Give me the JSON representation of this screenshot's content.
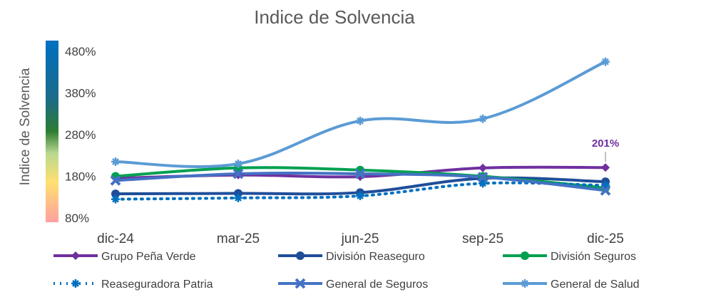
{
  "chart_data": {
    "type": "line",
    "title": "Indice de Solvencia",
    "ylabel": "Indice de Solvencia",
    "xlabel": "",
    "categories": [
      "dic-24",
      "mar-25",
      "jun-25",
      "sep-25",
      "dic-25"
    ],
    "ylim": [
      80,
      480
    ],
    "yticks": [
      80,
      180,
      280,
      380,
      480
    ],
    "ytick_labels": [
      "80%",
      "180%",
      "280%",
      "380%",
      "480%"
    ],
    "series": [
      {
        "name": "Grupo Peña Verde",
        "values": [
          175,
          183,
          179,
          200,
          201
        ],
        "color": "#7030A0",
        "marker": "diamond",
        "dash": "solid"
      },
      {
        "name": "División Reaseguro",
        "values": [
          138,
          139,
          141,
          175,
          167
        ],
        "color": "#1F4E99",
        "marker": "circle",
        "dash": "solid"
      },
      {
        "name": "División Seguros",
        "values": [
          180,
          200,
          195,
          180,
          152
        ],
        "color": "#00A050",
        "marker": "circle",
        "dash": "solid"
      },
      {
        "name": "Reaseguradora Patria",
        "values": [
          125,
          128,
          133,
          163,
          158
        ],
        "color": "#0070C0",
        "marker": "star",
        "dash": "dotted"
      },
      {
        "name": "General de Seguros",
        "values": [
          170,
          186,
          186,
          178,
          146
        ],
        "color": "#4472C4",
        "marker": "cross",
        "dash": "solid"
      },
      {
        "name": "General de Salud",
        "values": [
          215,
          210,
          313,
          318,
          455
        ],
        "color": "#5B9BD5",
        "marker": "star",
        "dash": "solid"
      }
    ],
    "data_labels": [
      {
        "series": "Grupo Peña Verde",
        "category": "dic-25",
        "text": "201%",
        "color": "#7030A0"
      }
    ],
    "legend_position": "bottom",
    "color_bar": [
      "#FFA0A0",
      "#FFE070",
      "#B8D890",
      "#2E7D32",
      "#1B6B8A",
      "#0070C0"
    ]
  }
}
